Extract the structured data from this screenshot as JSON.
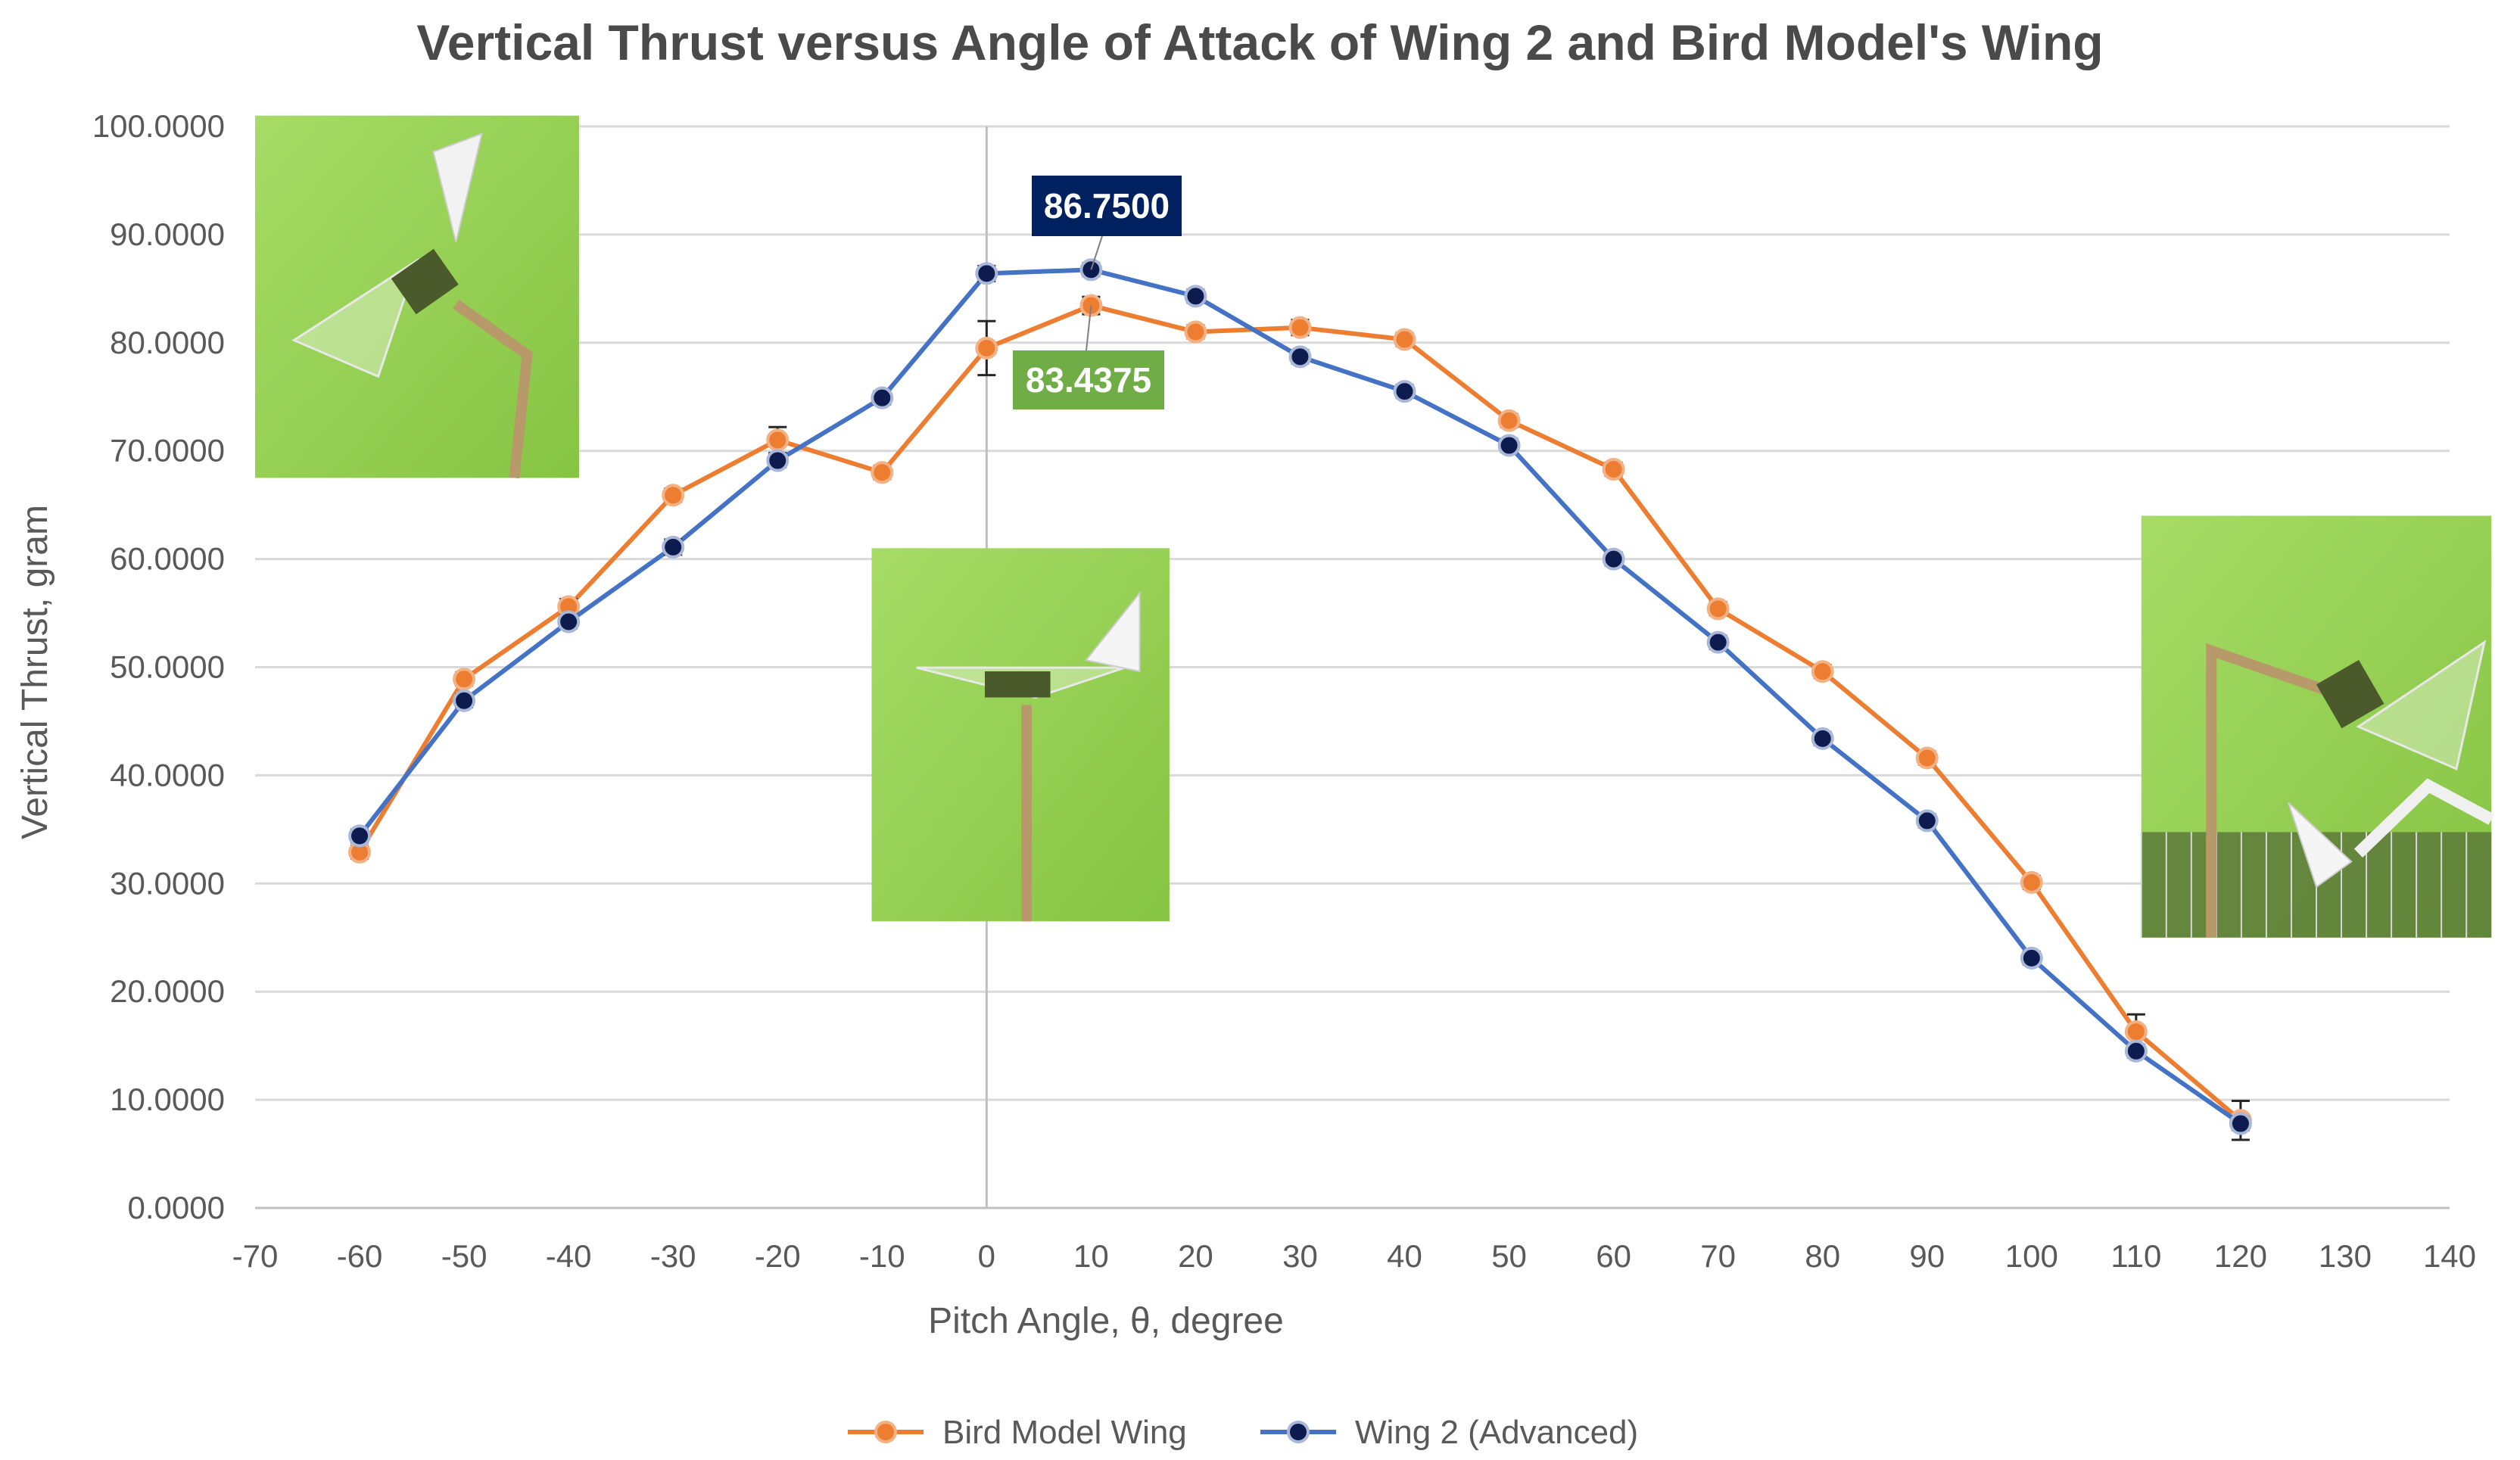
{
  "chart_data": {
    "type": "line",
    "title": "Vertical Thrust versus Angle of Attack of Wing 2 and Bird Model's Wing",
    "xlabel": "Pitch Angle, θ, degree",
    "ylabel": "Vertical Thrust, gram",
    "xlim": [
      -70,
      140
    ],
    "ylim": [
      0,
      100
    ],
    "x_ticks": [
      "-70",
      "-60",
      "-50",
      "-40",
      "-30",
      "-20",
      "-10",
      "0",
      "10",
      "20",
      "30",
      "40",
      "50",
      "60",
      "70",
      "80",
      "90",
      "100",
      "110",
      "120",
      "130",
      "140"
    ],
    "y_ticks": [
      "0.0000",
      "10.0000",
      "20.0000",
      "30.0000",
      "40.0000",
      "50.0000",
      "60.0000",
      "70.0000",
      "80.0000",
      "90.0000",
      "100.0000"
    ],
    "grid": "horizontal",
    "legend_position": "bottom",
    "x": [
      -60,
      -50,
      -40,
      -30,
      -20,
      -10,
      0,
      10,
      20,
      30,
      40,
      50,
      60,
      70,
      80,
      90,
      100,
      110,
      120
    ],
    "series": [
      {
        "name": "Bird Model Wing",
        "color": "#ED7D31",
        "values": [
          32.9,
          48.9,
          55.6,
          65.9,
          71.0,
          68.0,
          79.5,
          83.4375,
          81.0,
          81.4,
          80.3,
          72.8,
          68.3,
          55.4,
          49.6,
          41.6,
          30.1,
          16.3,
          8.1
        ],
        "error": [
          0.6,
          0.6,
          0.7,
          0.6,
          1.2,
          0.6,
          2.5,
          0.8,
          0.6,
          0.7,
          0.6,
          0.6,
          0.6,
          0.6,
          0.6,
          0.6,
          0.6,
          1.6,
          1.8
        ]
      },
      {
        "name": "Wing 2 (Advanced)",
        "color": "#4472C4",
        "marker_color": "#0D1B4F",
        "values": [
          34.4,
          46.9,
          54.2,
          61.1,
          69.1,
          74.9,
          86.4,
          86.75,
          84.3,
          78.7,
          75.5,
          70.5,
          60.0,
          52.3,
          43.4,
          35.8,
          23.1,
          14.5,
          7.8
        ],
        "error": [
          0.6,
          0.6,
          0.6,
          0.7,
          0.6,
          0.6,
          0.7,
          0.6,
          0.6,
          0.6,
          0.6,
          0.6,
          0.6,
          0.6,
          0.6,
          0.6,
          0.6,
          0.6,
          0.6
        ]
      }
    ],
    "annotations": [
      {
        "text": "86.7500",
        "x": 10,
        "y": 86.75,
        "color": "#002060",
        "series": "Wing 2 (Advanced)"
      },
      {
        "text": "83.4375",
        "x": 10,
        "y": 83.4375,
        "color": "#70AD47",
        "series": "Bird Model Wing"
      }
    ],
    "reference_line_x": 0,
    "insets": [
      {
        "name": "photo-wing-negative-pitch",
        "x_range": [
          -70,
          -39
        ],
        "y_range": [
          67.5,
          101
        ]
      },
      {
        "name": "photo-wing-zero-pitch",
        "x_range": [
          -11,
          17.5
        ],
        "y_range": [
          26.5,
          61
        ]
      },
      {
        "name": "photo-wing-high-pitch",
        "x_range": [
          110.5,
          144
        ],
        "y_range": [
          25,
          64
        ]
      }
    ]
  }
}
